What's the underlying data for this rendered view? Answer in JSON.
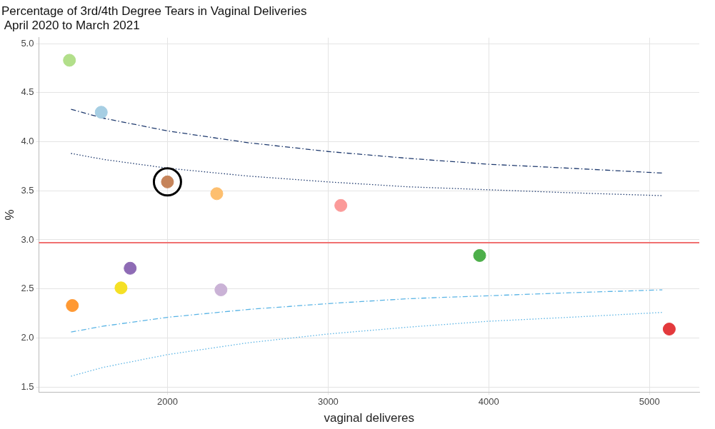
{
  "chart_data": {
    "type": "scatter",
    "title": "Percentage of 3rd/4th Degree Tears in Vaginal Deliveries",
    "subtitle": "April 2020 to March 2021",
    "xlabel": "vaginal deliveres",
    "ylabel": "%",
    "xlim": [
      1200,
      5310
    ],
    "xticks": [
      2000,
      3000,
      4000,
      5000
    ],
    "ylim": [
      1.45,
      5.06
    ],
    "yticks": [
      {
        "value": 1.5,
        "label": "1.5"
      },
      {
        "value": 2,
        "label": "2.0"
      },
      {
        "value": 2.5,
        "label": "2.5"
      },
      {
        "value": 3,
        "label": "3.0"
      },
      {
        "value": 3.5,
        "label": "3.5"
      },
      {
        "value": 4,
        "label": "4.0"
      },
      {
        "value": 4.5,
        "label": "4.5"
      },
      {
        "value": 5,
        "label": "5.0"
      }
    ],
    "grid": true,
    "legend": false,
    "marker": "circle",
    "series": [
      {
        "type": "scatter",
        "x": [
          1390,
          1588,
          2000,
          2307,
          3079,
          3943,
          1768,
          1711,
          2333,
          1408,
          5123
        ],
        "values": [
          4.83,
          4.3,
          3.59,
          3.47,
          3.35,
          2.84,
          2.71,
          2.51,
          2.49,
          2.33,
          2.09
        ],
        "colors": [
          "#b2df8a",
          "#a6cee3",
          "#c6845a",
          "#fdbf6f",
          "#fb9a99",
          "#4daf4a",
          "#8e6bb5",
          "#f5e025",
          "#cab2d6",
          "#ff9933",
          "#e3393c"
        ]
      },
      {
        "type": "scatter",
        "color": "#000000",
        "x": [
          2000
        ],
        "values": [
          3.59
        ]
      },
      {
        "type": "line",
        "color": "#1f3a6e",
        "line_style": "dashed",
        "marker": "none",
        "x": [
          1400,
          1600,
          2000,
          2500,
          3000,
          3500,
          4000,
          4500,
          5080
        ],
        "values": [
          4.33,
          4.24,
          4.11,
          3.99,
          3.9,
          3.83,
          3.77,
          3.73,
          3.68
        ]
      },
      {
        "type": "line",
        "color": "#1f3a6e",
        "line_style": "dotted",
        "marker": "none",
        "x": [
          1400,
          1600,
          2000,
          2500,
          3000,
          3500,
          4000,
          4500,
          5080
        ],
        "values": [
          3.88,
          3.82,
          3.73,
          3.65,
          3.59,
          3.54,
          3.51,
          3.48,
          3.45
        ]
      },
      {
        "type": "line",
        "color": "#5ab4e5",
        "line_style": "dashed",
        "marker": "none",
        "x": [
          1400,
          1600,
          2000,
          2500,
          3000,
          3500,
          4000,
          4500,
          5080
        ],
        "values": [
          2.06,
          2.12,
          2.21,
          2.29,
          2.35,
          2.4,
          2.43,
          2.46,
          2.49
        ]
      },
      {
        "type": "line",
        "color": "#5ab4e5",
        "line_style": "dotted",
        "marker": "none",
        "x": [
          1400,
          1600,
          2000,
          2500,
          3000,
          3500,
          4000,
          4500,
          5080
        ],
        "values": [
          1.61,
          1.7,
          1.83,
          1.95,
          2.04,
          2.11,
          2.17,
          2.21,
          2.26
        ]
      }
    ],
    "ref_lines": [
      {
        "axis": "y",
        "value": 2.97,
        "color": "#f07070"
      }
    ]
  }
}
